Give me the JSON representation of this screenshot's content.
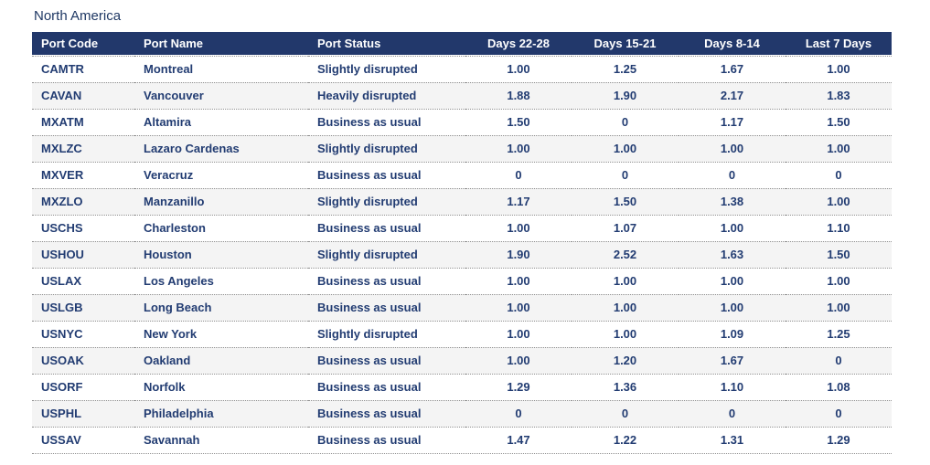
{
  "title": "North America",
  "colors": {
    "header_bg": "#22386B",
    "header_text": "#FFFFFF",
    "row_text": "#223C72",
    "title_text": "#1F3864",
    "row_alt_bg": "#F4F4F4",
    "row_bg": "#FFFFFF",
    "divider": "#8F8F8F"
  },
  "chart_data": {
    "type": "table",
    "title": "North America",
    "columns": [
      "Port Code",
      "Port Name",
      "Port Status",
      "Days 22-28",
      "Days 15-21",
      "Days 8-14",
      "Last 7 Days"
    ],
    "rows": [
      [
        "CAMTR",
        "Montreal",
        "Slightly disrupted",
        "1.00",
        "1.25",
        "1.67",
        "1.00"
      ],
      [
        "CAVAN",
        "Vancouver",
        "Heavily disrupted",
        "1.88",
        "1.90",
        "2.17",
        "1.83"
      ],
      [
        "MXATM",
        "Altamira",
        "Business as usual",
        "1.50",
        "0",
        "1.17",
        "1.50"
      ],
      [
        "MXLZC",
        "Lazaro Cardenas",
        "Slightly disrupted",
        "1.00",
        "1.00",
        "1.00",
        "1.00"
      ],
      [
        "MXVER",
        "Veracruz",
        "Business as usual",
        "0",
        "0",
        "0",
        "0"
      ],
      [
        "MXZLO",
        "Manzanillo",
        "Slightly disrupted",
        "1.17",
        "1.50",
        "1.38",
        "1.00"
      ],
      [
        "USCHS",
        "Charleston",
        "Business as usual",
        "1.00",
        "1.07",
        "1.00",
        "1.10"
      ],
      [
        "USHOU",
        "Houston",
        "Slightly disrupted",
        "1.90",
        "2.52",
        "1.63",
        "1.50"
      ],
      [
        "USLAX",
        "Los Angeles",
        "Business as usual",
        "1.00",
        "1.00",
        "1.00",
        "1.00"
      ],
      [
        "USLGB",
        "Long Beach",
        "Business as usual",
        "1.00",
        "1.00",
        "1.00",
        "1.00"
      ],
      [
        "USNYC",
        "New York",
        "Slightly disrupted",
        "1.00",
        "1.00",
        "1.09",
        "1.25"
      ],
      [
        "USOAK",
        "Oakland",
        "Business as usual",
        "1.00",
        "1.20",
        "1.67",
        "0"
      ],
      [
        "USORF",
        "Norfolk",
        "Business as usual",
        "1.29",
        "1.36",
        "1.10",
        "1.08"
      ],
      [
        "USPHL",
        "Philadelphia",
        "Business as usual",
        "0",
        "0",
        "0",
        "0"
      ],
      [
        "USSAV",
        "Savannah",
        "Business as usual",
        "1.47",
        "1.22",
        "1.31",
        "1.29"
      ]
    ]
  }
}
